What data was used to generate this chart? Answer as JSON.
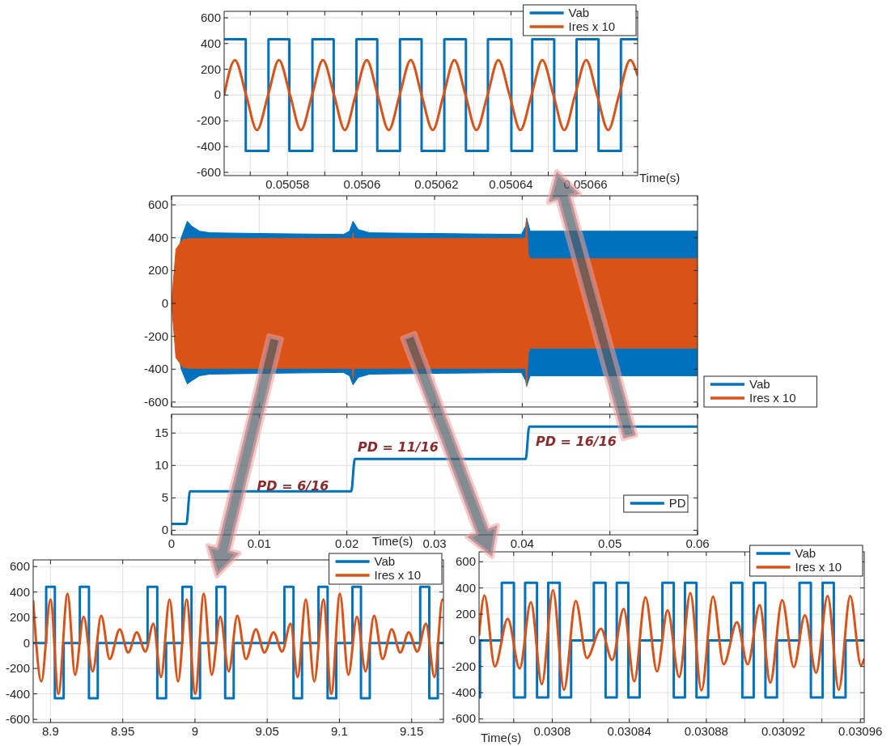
{
  "chart_data": [
    {
      "type": "line",
      "xlabel": "Time(s)",
      "xlim": [
        0.050563,
        0.050674
      ],
      "ylim": [
        -625,
        650
      ],
      "xticks": [
        {
          "value": 0.05057,
          "label": null
        },
        0.05058,
        {
          "value": 0.05059,
          "label": null
        },
        0.0506,
        {
          "value": 0.05061,
          "label": null
        },
        0.05062,
        {
          "value": 0.05063,
          "label": null
        },
        0.05064,
        {
          "value": 0.05065,
          "label": null
        },
        0.05066,
        {
          "value": 0.05067,
          "label": null
        }
      ],
      "yticks": [
        -600,
        -400,
        -200,
        0,
        200,
        400,
        600
      ],
      "grid": true,
      "legend": "top right",
      "series": [
        {
          "name": "Vab",
          "type": "step",
          "color": "#0072bd",
          "x": [
            0.050563,
            0.0505688,
            0.0505749,
            0.0505805,
            0.0505867,
            0.0505924,
            0.0505985,
            0.0506041,
            0.0506102,
            0.050616,
            0.0506221,
            0.0506279,
            0.0506338,
            0.0506401,
            0.0506457,
            0.0506516,
            0.0506576,
            0.0506635,
            0.0506695,
            0.050674
          ],
          "values": [
            433,
            -433,
            433,
            -433,
            433,
            -433,
            433,
            -433,
            433,
            -433,
            433,
            -433,
            433,
            -433,
            433,
            -433,
            433,
            -433,
            433,
            433
          ]
        },
        {
          "name": "Ires x 10",
          "color": "#d95319",
          "x": [
            0.050563,
            0.0505659,
            0.0505689,
            0.0505718,
            0.0505748,
            0.0505777,
            0.0505807,
            0.0505836,
            0.0505866,
            0.0505895,
            0.0505925,
            0.0505954,
            0.0505983,
            0.0506013,
            0.0506042,
            0.0506072,
            0.0506101,
            0.0506131,
            0.050616,
            0.050619,
            0.0506219,
            0.0506248,
            0.0506278,
            0.0506307,
            0.0506337,
            0.0506366,
            0.0506396,
            0.0506425,
            0.0506455,
            0.0506484,
            0.0506514,
            0.0506543,
            0.0506572,
            0.0506602,
            0.0506631,
            0.0506661,
            0.050669,
            0.050672,
            0.050674
          ],
          "values": [
            0,
            272,
            0,
            -272,
            0,
            272,
            0,
            -272,
            0,
            272,
            0,
            -272,
            0,
            272,
            0,
            -272,
            0,
            272,
            0,
            -272,
            0,
            272,
            0,
            -272,
            0,
            272,
            0,
            -272,
            0,
            272,
            0,
            -272,
            0,
            272,
            0,
            -272,
            0,
            272,
            150
          ]
        }
      ]
    },
    {
      "type": "area",
      "xlim": [
        0,
        0.06
      ],
      "ylim": [
        -630,
        655
      ],
      "xticks": [
        0,
        0.01,
        0.02,
        0.03,
        0.04,
        0.05,
        0.06
      ],
      "yticks": [
        -600,
        -400,
        -200,
        0,
        200,
        400,
        600
      ],
      "grid": true,
      "legend": "right",
      "tick_labels": "y",
      "series": [
        {
          "name": "Vab",
          "color": "#0072bd",
          "x": [
            0,
            0.0004,
            0.0011,
            0.0018,
            0.0023,
            0.0032,
            0.0044,
            0.0112,
            0.0196,
            0.0203,
            0.0207,
            0.0213,
            0.0226,
            0.0399,
            0.0404,
            0.0405,
            0.0409,
            0.0416,
            0.06
          ],
          "values": [
            0,
            200,
            400,
            500,
            470,
            440,
            430,
            425,
            420,
            440,
            500,
            450,
            430,
            420,
            470,
            520,
            440,
            440,
            440
          ]
        },
        {
          "color": "#0072bd",
          "x": [
            0,
            0.0004,
            0.0011,
            0.0018,
            0.0023,
            0.0032,
            0.0044,
            0.0112,
            0.0196,
            0.0203,
            0.0207,
            0.0213,
            0.0226,
            0.0399,
            0.0404,
            0.0405,
            0.0409,
            0.0416,
            0.06
          ],
          "values": [
            0,
            -200,
            -400,
            -490,
            -470,
            -440,
            -430,
            -425,
            -420,
            -440,
            -495,
            -450,
            -430,
            -420,
            -470,
            -505,
            -440,
            -440,
            -440
          ]
        },
        {
          "name": "Ires x 10",
          "color": "#d95319",
          "x": [
            0,
            0.0005,
            0.0013,
            0.0021,
            0.0206,
            0.0207,
            0.0208,
            0.0404,
            0.0405,
            0.0407,
            0.0409,
            0.06
          ],
          "values": [
            0,
            330,
            390,
            395,
            395,
            430,
            395,
            395,
            510,
            300,
            272,
            272
          ]
        },
        {
          "color": "#d95319",
          "x": [
            0,
            0.0005,
            0.0013,
            0.0021,
            0.0206,
            0.0207,
            0.0208,
            0.0404,
            0.0405,
            0.0407,
            0.0409,
            0.06
          ],
          "values": [
            0,
            -330,
            -390,
            -395,
            -395,
            -460,
            -395,
            -395,
            -500,
            -300,
            -272,
            -272
          ]
        }
      ]
    },
    {
      "type": "line",
      "xlabel": "Time(s)",
      "xlim": [
        0,
        0.06
      ],
      "ylim": [
        -0.7,
        17.9
      ],
      "xticks": [
        0,
        0.01,
        0.02,
        0.03,
        0.04,
        0.05,
        0.06
      ],
      "yticks": [
        0,
        5,
        10,
        15
      ],
      "grid": true,
      "legend": "bottom right",
      "annotations": [
        "PD = 6/16",
        "PD = 11/16",
        "PD = 16/16"
      ],
      "series": [
        {
          "name": "PD",
          "color": "#0072bd",
          "x": [
            0,
            0.0017,
            0.0021,
            0.0205,
            0.0209,
            0.0404,
            0.0408,
            0.06
          ],
          "values": [
            1,
            1,
            6,
            6,
            11,
            11,
            16,
            16
          ]
        }
      ]
    },
    {
      "type": "line",
      "xlim": [
        8.888,
        9.172
      ],
      "ylim": [
        -625,
        652
      ],
      "xticks": [
        8.9,
        8.95,
        9,
        9.05,
        9.1,
        9.15
      ],
      "yticks": [
        -600,
        -400,
        -200,
        0,
        200,
        400,
        600
      ],
      "grid": true,
      "legend": "top right",
      "series": [
        {
          "name": "Vab",
          "type": "step",
          "color": "#0072bd",
          "x": [
            8.888,
            8.897,
            8.903,
            8.9091,
            8.9203,
            8.9266,
            8.9327,
            8.9672,
            8.9739,
            8.98,
            8.9913,
            8.9976,
            9.0035,
            9.0149,
            9.0209,
            9.0268,
            9.0619,
            9.0682,
            9.0741,
            9.0855,
            9.0918,
            9.0978,
            9.109,
            9.1149,
            9.121,
            9.1559,
            9.1622,
            9.1681,
            9.172
          ],
          "values": [
            0,
            440,
            -435,
            0,
            440,
            -435,
            0,
            440,
            -435,
            0,
            440,
            -435,
            0,
            440,
            -435,
            0,
            440,
            -435,
            0,
            440,
            -435,
            0,
            440,
            -435,
            0,
            440,
            -435,
            0,
            0
          ]
        },
        {
          "name": "Ires x 10",
          "color": "#d95319",
          "x": [
            8.888,
            8.8937,
            8.9,
            8.9055,
            8.9118,
            8.917,
            8.9229,
            8.9292,
            8.9351,
            8.941,
            8.9479,
            8.9538,
            8.9597,
            8.9657,
            8.9712,
            8.9765,
            8.9824,
            8.9883,
            8.9942,
            9.0002,
            9.0061,
            9.0116,
            9.0175,
            9.0234,
            9.0293,
            9.0353,
            9.0422,
            9.0481,
            9.0544,
            9.0603,
            9.0662,
            9.0711,
            9.0767,
            9.0826,
            9.0889,
            9.0944,
            9.1003,
            9.1062,
            9.1121,
            9.1181,
            9.124,
            9.1299,
            9.1362,
            9.1421,
            9.148,
            9.1539,
            9.1599,
            9.1658,
            9.1713,
            9.172
          ],
          "values": [
            334,
            -302,
            341,
            -400,
            386,
            -250,
            205,
            -223,
            214,
            -127,
            107,
            -75,
            84,
            -68,
            152,
            -268,
            341,
            -302,
            341,
            -400,
            386,
            -250,
            205,
            -223,
            214,
            -127,
            107,
            -75,
            84,
            -68,
            152,
            -268,
            341,
            -302,
            341,
            -400,
            386,
            -250,
            205,
            -223,
            214,
            -127,
            107,
            -75,
            84,
            -68,
            152,
            -268,
            341,
            330
          ]
        }
      ]
    },
    {
      "type": "line",
      "xlabel": "Time(s)",
      "xlim": [
        0.030762,
        0.030962
      ],
      "ylim": [
        -628,
        676
      ],
      "xticks": [
        {
          "value": 0.03078,
          "label": null
        },
        0.0308,
        {
          "value": 0.03082,
          "label": null
        },
        0.03084,
        {
          "value": 0.03086,
          "label": null
        },
        0.03088,
        {
          "value": 0.0309,
          "label": null
        },
        0.03092,
        {
          "value": 0.03094,
          "label": null
        },
        0.03096
      ],
      "yticks": [
        -600,
        -400,
        -200,
        0,
        200,
        400,
        600
      ],
      "grid": true,
      "legend": "top right",
      "series": [
        {
          "name": "Vab",
          "type": "step",
          "color": "#0072bd",
          "x": [
            0.030762,
            0.0307625,
            0.0307738,
            0.0307801,
            0.0307859,
            0.0307921,
            0.0307979,
            0.0308039,
            0.0308098,
            0.0308216,
            0.0308277,
            0.0308335,
            0.0308395,
            0.0308454,
            0.0308572,
            0.0308631,
            0.0308689,
            0.0308749,
            0.030881,
            0.0308929,
            0.0308987,
            0.0309046,
            0.0309107,
            0.0309167,
            0.0309284,
            0.0309343,
            0.0309404,
            0.0309462,
            0.0309523,
            0.030962
          ],
          "values": [
            -437,
            0,
            440,
            -437,
            440,
            -437,
            440,
            -437,
            0,
            440,
            -437,
            440,
            -437,
            0,
            440,
            -437,
            440,
            -437,
            0,
            440,
            -437,
            440,
            -437,
            0,
            440,
            -437,
            440,
            -437,
            0,
            0
          ]
        },
        {
          "name": "Ires x 10",
          "color": "#d95319",
          "x": [
            0.030762,
            0.0307648,
            0.0307702,
            0.0307769,
            0.0307831,
            0.0307889,
            0.0307946,
            0.0308004,
            0.0308061,
            0.0308122,
            0.030818,
            0.0308253,
            0.0308311,
            0.0308371,
            0.0308426,
            0.0308484,
            0.0308544,
            0.0308599,
            0.0308659,
            0.0308717,
            0.0308775,
            0.0308835,
            0.030889,
            0.0308959,
            0.0309015,
            0.0309077,
            0.0309132,
            0.0309194,
            0.0309254,
            0.0309312,
            0.030937,
            0.030943,
            0.0309488,
            0.0309547,
            0.0309603,
            0.030962
          ],
          "values": [
            35,
            343,
            -200,
            165,
            -215,
            291,
            -335,
            383,
            -378,
            300,
            -135,
            89,
            -150,
            241,
            -313,
            328,
            -237,
            230,
            -280,
            361,
            -383,
            335,
            -183,
            139,
            -183,
            270,
            -324,
            307,
            -204,
            191,
            -248,
            339,
            -378,
            339,
            -193,
            -139
          ]
        }
      ]
    }
  ]
}
